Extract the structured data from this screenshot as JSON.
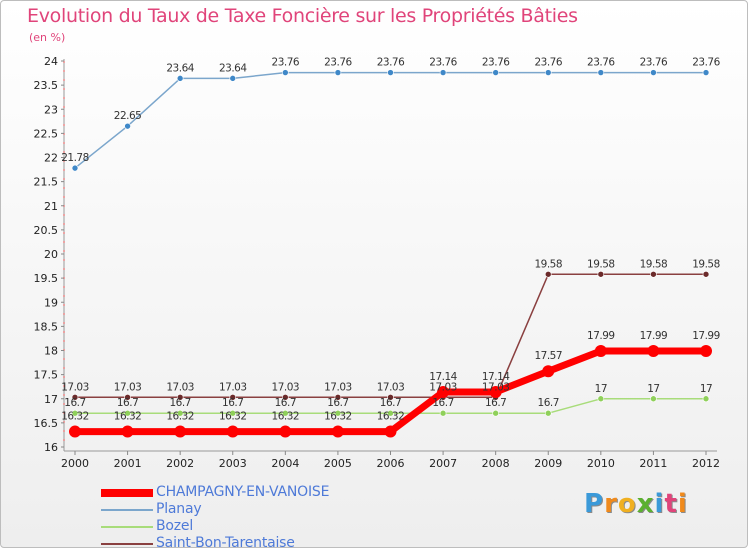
{
  "header": {
    "title": "Evolution du Taux de Taxe Foncière sur les Propriétés Bâties",
    "unit": "(en %)"
  },
  "brand": {
    "letters": [
      "P",
      "r",
      "o",
      "x",
      "i",
      "t",
      "i"
    ],
    "colors": [
      "#3b9ad9",
      "#f08a1c",
      "#f0b020",
      "#5bb030",
      "#3b9ad9",
      "#e0447a",
      "#f08a1c"
    ]
  },
  "chart_data": {
    "type": "line",
    "title": "Evolution du Taux de Taxe Foncière sur les Propriétés Bâties",
    "ylabel": "(en %)",
    "xlabel": "",
    "ylim": [
      16,
      24
    ],
    "yticks": [
      16,
      16.5,
      17,
      17.5,
      18,
      18.5,
      19,
      19.5,
      20,
      20.5,
      21,
      21.5,
      22,
      22.5,
      23,
      23.5,
      24
    ],
    "categories": [
      "2000",
      "2001",
      "2002",
      "2003",
      "2004",
      "2005",
      "2006",
      "2007",
      "2008",
      "2009",
      "2010",
      "2011",
      "2012"
    ],
    "series": [
      {
        "name": "CHAMPAGNY-EN-VANOISE",
        "color": "#ff0000",
        "values": [
          16.32,
          16.32,
          16.32,
          16.32,
          16.32,
          16.32,
          16.32,
          17.14,
          17.14,
          17.57,
          17.99,
          17.99,
          17.99
        ],
        "labels": [
          "16.32",
          "16.32",
          "16.32",
          "16.32",
          "16.32",
          "16.32",
          "16.32",
          "17.14",
          "17.14",
          "17.57",
          "17.99",
          "17.99",
          "17.99"
        ]
      },
      {
        "name": "Planay",
        "color": "#7ba6cc",
        "values": [
          21.78,
          22.65,
          23.64,
          23.64,
          23.76,
          23.76,
          23.76,
          23.76,
          23.76,
          23.76,
          23.76,
          23.76,
          23.76
        ],
        "labels": [
          "21.78",
          "22.65",
          "23.64",
          "23.64",
          "23.76",
          "23.76",
          "23.76",
          "23.76",
          "23.76",
          "23.76",
          "23.76",
          "23.76",
          "23.76"
        ]
      },
      {
        "name": "Bozel",
        "color": "#a8dc7a",
        "values": [
          16.7,
          16.7,
          16.7,
          16.7,
          16.7,
          16.7,
          16.7,
          16.7,
          16.7,
          16.7,
          17,
          17,
          17
        ],
        "labels": [
          "16.7",
          "16.7",
          "16.7",
          "16.7",
          "16.7",
          "16.7",
          "16.7",
          "16.7",
          "16.7",
          "16.7",
          "17",
          "17",
          "17"
        ]
      },
      {
        "name": "Saint-Bon-Tarentaise",
        "color": "#8a4040",
        "values": [
          17.03,
          17.03,
          17.03,
          17.03,
          17.03,
          17.03,
          17.03,
          17.03,
          17.03,
          19.58,
          19.58,
          19.58,
          19.58
        ],
        "labels": [
          "17.03",
          "17.03",
          "17.03",
          "17.03",
          "17.03",
          "17.03",
          "17.03",
          "17.03",
          "17.03",
          "19.58",
          "19.58",
          "19.58",
          "19.58"
        ]
      }
    ]
  }
}
